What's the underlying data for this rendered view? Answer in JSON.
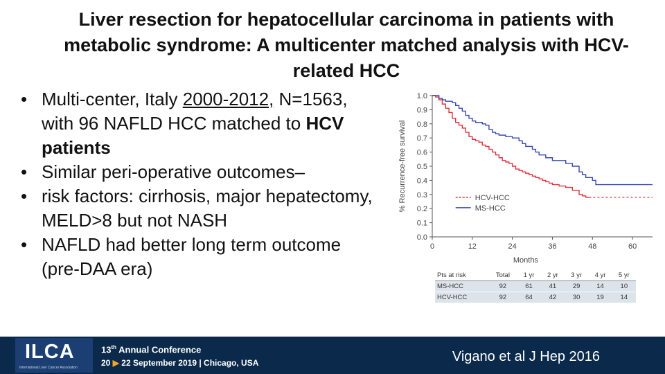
{
  "slide": {
    "title": "Liver resection for hepatocellular carcinoma in patients with metabolic syndrome: A multicenter matched analysis with HCV-related HCC",
    "bullets": {
      "b1_pre": "Multi-center, Italy ",
      "b1_years": "2000-2012,",
      "b1_mid": " N=1563, with 96 NAFLD HCC matched to ",
      "b1_bold": "HCV patients",
      "b2": "Similar peri-operative outcomes–",
      "b3": "risk factors: cirrhosis, major hepatectomy, MELD>8 but not NASH",
      "b4": "NAFLD had better long term outcome (pre-DAA era)"
    },
    "bullet_glyph": "•",
    "citation": "Vigano et al  J Hep 2016",
    "footer": {
      "logo": "ILCA",
      "logo_sub": "International Liver Cancer Association",
      "conf_num": "13",
      "conf_sup": "th",
      "conf_text": " Annual Conference",
      "date_start": "20",
      "arrow": "▶",
      "date_rest": " 22 September 2019 | Chicago, USA"
    }
  },
  "chart_data": {
    "type": "line",
    "ylabel": "% Recurrence-free survival",
    "xlabel": "Months",
    "xlim": [
      0,
      66
    ],
    "ylim": [
      0.0,
      1.0
    ],
    "x_ticks": [
      "0",
      "12",
      "24",
      "36",
      "48",
      "60"
    ],
    "y_ticks": [
      "0.0",
      "0.1",
      "0.2",
      "0.3",
      "0.4",
      "0.5",
      "0.6",
      "0.7",
      "0.8",
      "0.9",
      "1.0"
    ],
    "legend_position": "center-right",
    "series": [
      {
        "name": "HCV-HCC",
        "color": "#e0323c",
        "dashed_tail": true,
        "points": [
          [
            0,
            1.0
          ],
          [
            1,
            0.99
          ],
          [
            2,
            0.97
          ],
          [
            3,
            0.94
          ],
          [
            4,
            0.91
          ],
          [
            5,
            0.88
          ],
          [
            6,
            0.84
          ],
          [
            7,
            0.81
          ],
          [
            8,
            0.79
          ],
          [
            9,
            0.77
          ],
          [
            10,
            0.74
          ],
          [
            11,
            0.71
          ],
          [
            12,
            0.69
          ],
          [
            13,
            0.68
          ],
          [
            14,
            0.67
          ],
          [
            15,
            0.65
          ],
          [
            16,
            0.64
          ],
          [
            17,
            0.62
          ],
          [
            18,
            0.6
          ],
          [
            19,
            0.58
          ],
          [
            20,
            0.56
          ],
          [
            21,
            0.54
          ],
          [
            22,
            0.53
          ],
          [
            23,
            0.52
          ],
          [
            24,
            0.5
          ],
          [
            25,
            0.48
          ],
          [
            26,
            0.47
          ],
          [
            27,
            0.46
          ],
          [
            28,
            0.45
          ],
          [
            29,
            0.44
          ],
          [
            30,
            0.43
          ],
          [
            31,
            0.42
          ],
          [
            32,
            0.41
          ],
          [
            33,
            0.4
          ],
          [
            34,
            0.39
          ],
          [
            35,
            0.38
          ],
          [
            36,
            0.37
          ],
          [
            38,
            0.36
          ],
          [
            40,
            0.35
          ],
          [
            42,
            0.33
          ],
          [
            44,
            0.3
          ],
          [
            45,
            0.29
          ],
          [
            46,
            0.28
          ],
          [
            47,
            0.28
          ]
        ],
        "tail": [
          [
            47,
            0.28
          ],
          [
            66,
            0.28
          ]
        ]
      },
      {
        "name": "MS-HCC",
        "color": "#3848b0",
        "dashed_tail": false,
        "points": [
          [
            0,
            1.0
          ],
          [
            1,
            1.0
          ],
          [
            2,
            0.98
          ],
          [
            3,
            0.97
          ],
          [
            4,
            0.96
          ],
          [
            6,
            0.95
          ],
          [
            7,
            0.93
          ],
          [
            8,
            0.91
          ],
          [
            9,
            0.89
          ],
          [
            10,
            0.86
          ],
          [
            11,
            0.84
          ],
          [
            12,
            0.82
          ],
          [
            13,
            0.81
          ],
          [
            15,
            0.8
          ],
          [
            16,
            0.79
          ],
          [
            17,
            0.76
          ],
          [
            18,
            0.74
          ],
          [
            19,
            0.73
          ],
          [
            20,
            0.72
          ],
          [
            22,
            0.71
          ],
          [
            24,
            0.7
          ],
          [
            26,
            0.68
          ],
          [
            27,
            0.66
          ],
          [
            28,
            0.64
          ],
          [
            30,
            0.62
          ],
          [
            31,
            0.6
          ],
          [
            32,
            0.58
          ],
          [
            34,
            0.56
          ],
          [
            36,
            0.54
          ],
          [
            40,
            0.52
          ],
          [
            42,
            0.5
          ],
          [
            44,
            0.46
          ],
          [
            45,
            0.44
          ],
          [
            46,
            0.42
          ],
          [
            48,
            0.4
          ],
          [
            49,
            0.37
          ],
          [
            66,
            0.37
          ]
        ]
      }
    ],
    "risk_table": {
      "headers": [
        "Pts at risk",
        "Total",
        "1 yr",
        "2 yr",
        "3 yr",
        "4 yr",
        "5 yr"
      ],
      "rows": [
        [
          "MS-HCC",
          "92",
          "61",
          "41",
          "29",
          "14",
          "10"
        ],
        [
          "HCV-HCC",
          "92",
          "64",
          "42",
          "30",
          "19",
          "14"
        ]
      ]
    }
  }
}
